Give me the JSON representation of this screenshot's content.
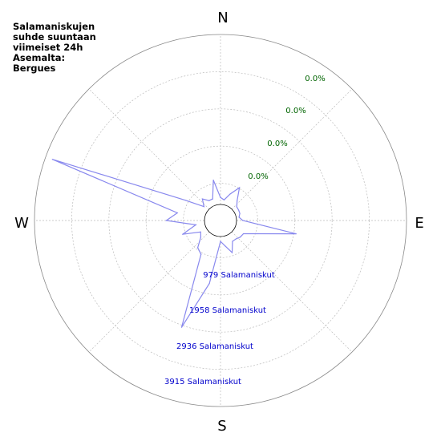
{
  "chart_data": {
    "type": "polar-area",
    "title": "Salamaniskujen\nsuhde suuntaan\nviimeiset 24h\nAsemalta:\nBergues",
    "compass": {
      "north": "N",
      "east": "E",
      "south": "S",
      "west": "W"
    },
    "percent_labels": [
      "0.0%",
      "0.0%",
      "0.0%",
      "0.0%"
    ],
    "count_labels": [
      "979 Salamaniskut",
      "1958 Salamaniskut",
      "2936 Salamaniskut",
      "3915 Salamaniskut"
    ],
    "r_max": 4895,
    "colors": {
      "series": "#8888ee",
      "percent_text": "#006400",
      "count_text": "#0000cc",
      "grid": "#bbbbbb"
    },
    "directions_deg": [
      0,
      10,
      20,
      30,
      40,
      50,
      60,
      70,
      80,
      90,
      100,
      110,
      120,
      130,
      140,
      150,
      160,
      170,
      180,
      190,
      200,
      210,
      220,
      230,
      240,
      250,
      260,
      270,
      280,
      290,
      300,
      310,
      320,
      330,
      340,
      350
    ],
    "values": [
      200,
      140,
      350,
      630,
      280,
      150,
      140,
      130,
      80,
      180,
      1750,
      650,
      300,
      280,
      230,
      230,
      520,
      280,
      140,
      1380,
      2810,
      660,
      560,
      280,
      200,
      700,
      260,
      1100,
      800,
      4690,
      700,
      160,
      350,
      200,
      200,
      720
    ]
  }
}
